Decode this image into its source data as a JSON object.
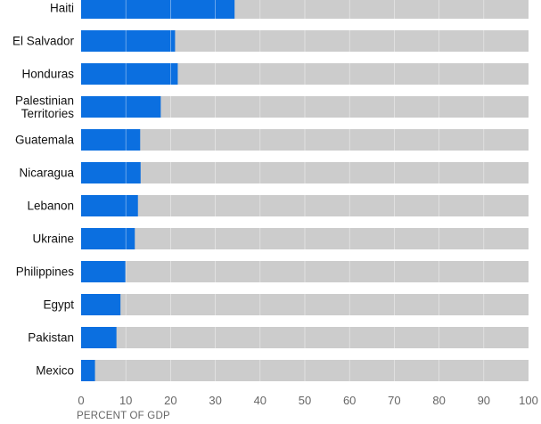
{
  "chart_data": {
    "type": "bar",
    "orientation": "horizontal",
    "stacked_to_total": true,
    "categories": [
      "Haiti",
      "El Salvador",
      "Honduras",
      "Palestinian Territories",
      "Guatemala",
      "Nicaragua",
      "Lebanon",
      "Ukraine",
      "Philippines",
      "Egypt",
      "Pakistan",
      "Mexico"
    ],
    "category_lines": [
      [
        "Haiti"
      ],
      [
        "El Salvador"
      ],
      [
        "Honduras"
      ],
      [
        "Palestinian",
        "Territories"
      ],
      [
        "Guatemala"
      ],
      [
        "Nicaragua"
      ],
      [
        "Lebanon"
      ],
      [
        "Ukraine"
      ],
      [
        "Philippines"
      ],
      [
        "Egypt"
      ],
      [
        "Pakistan"
      ],
      [
        "Mexico"
      ]
    ],
    "values": [
      34.3,
      21.0,
      21.6,
      17.8,
      13.2,
      13.3,
      12.7,
      12.0,
      9.9,
      8.8,
      7.9,
      3.1
    ],
    "total": 100,
    "xlim": [
      0,
      100
    ],
    "xticks": [
      0,
      10,
      20,
      30,
      40,
      50,
      60,
      70,
      80,
      90,
      100
    ],
    "xlabel": "PERCENT OF GDP",
    "title": "",
    "grid": false,
    "colors": {
      "value": "#0b6fe0",
      "remainder": "#cccccc",
      "divider": "#ffffff",
      "label": "#111111",
      "tick": "#666666"
    }
  }
}
